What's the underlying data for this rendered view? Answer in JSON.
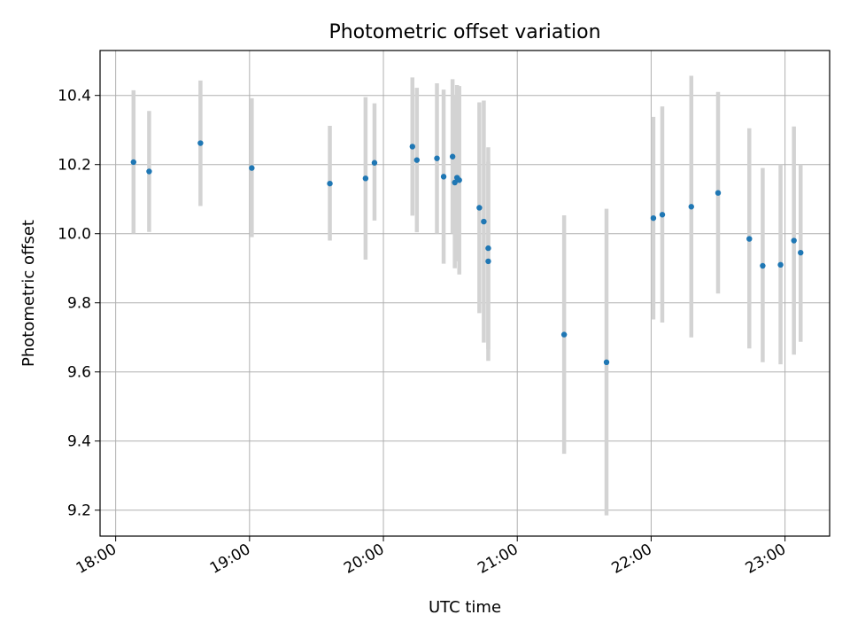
{
  "chart_data": {
    "type": "scatter",
    "title": "Photometric offset variation",
    "xlabel": "UTC time",
    "ylabel": "Photometric offset",
    "xlim": [
      "17:53",
      "23:20"
    ],
    "ylim": [
      9.125,
      10.53
    ],
    "grid": true,
    "x_ticks": [
      "18:00",
      "19:00",
      "20:00",
      "21:00",
      "22:00",
      "23:00"
    ],
    "y_ticks": [
      9.2,
      9.4,
      9.6,
      9.8,
      10.0,
      10.2,
      10.4
    ],
    "y_tick_labels": [
      "9.2",
      "9.4",
      "9.6",
      "9.8",
      "10.0",
      "10.2",
      "10.4"
    ],
    "colors": {
      "point": "#1f77b4",
      "errorbar": "#d3d3d3",
      "grid": "#b0b0b0"
    },
    "points": [
      {
        "x": "18:08",
        "y": 10.207,
        "lo": 10.0,
        "hi": 10.415
      },
      {
        "x": "18:15",
        "y": 10.18,
        "lo": 10.005,
        "hi": 10.355
      },
      {
        "x": "18:38",
        "y": 10.262,
        "lo": 10.08,
        "hi": 10.443
      },
      {
        "x": "19:01",
        "y": 10.19,
        "lo": 9.99,
        "hi": 10.392
      },
      {
        "x": "19:36",
        "y": 10.145,
        "lo": 9.98,
        "hi": 10.312
      },
      {
        "x": "19:52",
        "y": 10.16,
        "lo": 9.925,
        "hi": 10.395
      },
      {
        "x": "19:56",
        "y": 10.205,
        "lo": 10.038,
        "hi": 10.377
      },
      {
        "x": "20:13",
        "y": 10.252,
        "lo": 10.052,
        "hi": 10.452
      },
      {
        "x": "20:15",
        "y": 10.213,
        "lo": 10.004,
        "hi": 10.422
      },
      {
        "x": "20:24",
        "y": 10.218,
        "lo": 10.0,
        "hi": 10.435
      },
      {
        "x": "20:27",
        "y": 10.165,
        "lo": 9.913,
        "hi": 10.417
      },
      {
        "x": "20:31",
        "y": 10.223,
        "lo": 10.0,
        "hi": 10.447
      },
      {
        "x": "20:32",
        "y": 10.148,
        "lo": 9.9,
        "hi": 10.402
      },
      {
        "x": "20:33",
        "y": 10.162,
        "lo": 9.92,
        "hi": 10.43
      },
      {
        "x": "20:34",
        "y": 10.155,
        "lo": 9.882,
        "hi": 10.427
      },
      {
        "x": "20:43",
        "y": 10.075,
        "lo": 9.77,
        "hi": 10.38
      },
      {
        "x": "20:45",
        "y": 10.035,
        "lo": 9.685,
        "hi": 10.385
      },
      {
        "x": "20:47",
        "y": 9.958,
        "lo": 9.665,
        "hi": 10.25
      },
      {
        "x": "20:47",
        "y": 9.92,
        "lo": 9.632,
        "hi": 10.208
      },
      {
        "x": "21:21",
        "y": 9.708,
        "lo": 9.363,
        "hi": 10.053
      },
      {
        "x": "21:40",
        "y": 9.628,
        "lo": 9.185,
        "hi": 10.072
      },
      {
        "x": "22:01",
        "y": 10.045,
        "lo": 9.752,
        "hi": 10.338
      },
      {
        "x": "22:05",
        "y": 10.055,
        "lo": 9.743,
        "hi": 10.368
      },
      {
        "x": "22:18",
        "y": 10.078,
        "lo": 9.7,
        "hi": 10.457
      },
      {
        "x": "22:30",
        "y": 10.118,
        "lo": 9.827,
        "hi": 10.41
      },
      {
        "x": "22:44",
        "y": 9.985,
        "lo": 9.668,
        "hi": 10.305
      },
      {
        "x": "22:50",
        "y": 9.907,
        "lo": 9.628,
        "hi": 10.19
      },
      {
        "x": "22:58",
        "y": 9.91,
        "lo": 9.622,
        "hi": 10.2
      },
      {
        "x": "23:04",
        "y": 9.98,
        "lo": 9.65,
        "hi": 10.31
      },
      {
        "x": "23:07",
        "y": 9.945,
        "lo": 9.687,
        "hi": 10.2
      }
    ]
  }
}
